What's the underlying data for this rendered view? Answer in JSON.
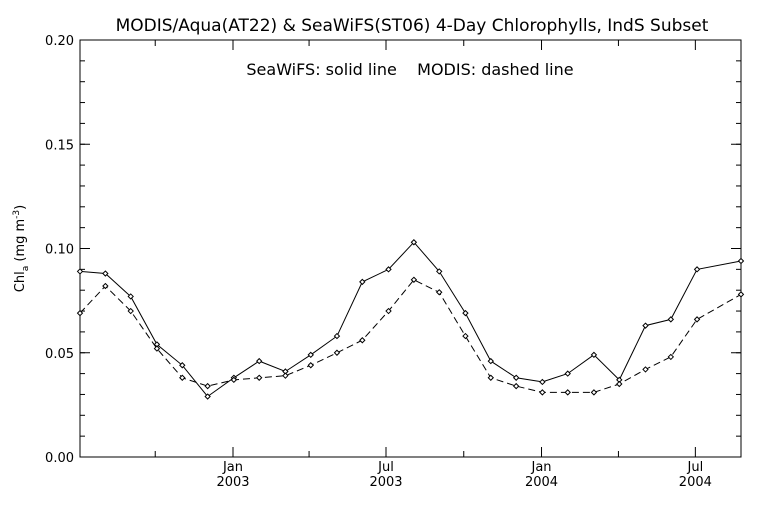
{
  "chart_data": {
    "type": "line",
    "title": "MODIS/Aqua(AT22) & SeaWiFS(ST06) 4-Day Chlorophylls, IndS Subset",
    "legend_note": "SeaWiFS: solid line    MODIS: dashed line",
    "ylabel": {
      "base": "Chl",
      "sub": "a",
      "units_pre": "(mg m",
      "units_sup": "-3",
      "units_post": ")"
    },
    "ylim": [
      0.0,
      0.2
    ],
    "yticks": [
      {
        "value": 0.0,
        "label": "0.00"
      },
      {
        "value": 0.05,
        "label": "0.05"
      },
      {
        "value": 0.1,
        "label": "0.10"
      },
      {
        "value": 0.15,
        "label": "0.15"
      },
      {
        "value": 0.2,
        "label": "0.20"
      }
    ],
    "xlim": [
      "2002-07-04",
      "2004-08-24"
    ],
    "xticks": [
      {
        "date": "2003-01-01",
        "label1": "Jan",
        "label2": "2003"
      },
      {
        "date": "2003-07-01",
        "label1": "Jul",
        "label2": "2003"
      },
      {
        "date": "2004-01-01",
        "label1": "Jan",
        "label2": "2004"
      },
      {
        "date": "2004-07-01",
        "label1": "Jul",
        "label2": "2004"
      }
    ],
    "xminor_ticks": [
      "2002-10-01",
      "2003-04-01",
      "2003-10-01",
      "2004-04-01"
    ],
    "grid": false,
    "series": [
      {
        "name": "SeaWiFS",
        "style": "solid",
        "color": "#000000",
        "points": [
          [
            "2002-07-04",
            0.089
          ],
          [
            "2002-08-03",
            0.088
          ],
          [
            "2002-09-02",
            0.077
          ],
          [
            "2002-10-03",
            0.054
          ],
          [
            "2002-11-02",
            0.044
          ],
          [
            "2002-12-02",
            0.029
          ],
          [
            "2003-01-02",
            0.038
          ],
          [
            "2003-02-01",
            0.046
          ],
          [
            "2003-03-04",
            0.041
          ],
          [
            "2003-04-03",
            0.049
          ],
          [
            "2003-05-04",
            0.058
          ],
          [
            "2003-06-03",
            0.084
          ],
          [
            "2003-07-04",
            0.09
          ],
          [
            "2003-08-03",
            0.103
          ],
          [
            "2003-09-02",
            0.089
          ],
          [
            "2003-10-03",
            0.069
          ],
          [
            "2003-11-02",
            0.046
          ],
          [
            "2003-12-02",
            0.038
          ],
          [
            "2004-01-02",
            0.036
          ],
          [
            "2004-02-01",
            0.04
          ],
          [
            "2004-03-03",
            0.049
          ],
          [
            "2004-04-02",
            0.037
          ],
          [
            "2004-05-03",
            0.063
          ],
          [
            "2004-06-02",
            0.066
          ],
          [
            "2004-07-03",
            0.09
          ],
          [
            "2004-08-24",
            0.094
          ]
        ]
      },
      {
        "name": "MODIS",
        "style": "dashed",
        "color": "#000000",
        "points": [
          [
            "2002-07-04",
            0.069
          ],
          [
            "2002-08-03",
            0.082
          ],
          [
            "2002-09-02",
            0.07
          ],
          [
            "2002-10-03",
            0.052
          ],
          [
            "2002-11-02",
            0.038
          ],
          [
            "2002-12-02",
            0.034
          ],
          [
            "2003-01-02",
            0.037
          ],
          [
            "2003-02-01",
            0.038
          ],
          [
            "2003-03-04",
            0.039
          ],
          [
            "2003-04-03",
            0.044
          ],
          [
            "2003-05-04",
            0.05
          ],
          [
            "2003-06-03",
            0.056
          ],
          [
            "2003-07-04",
            0.07
          ],
          [
            "2003-08-03",
            0.085
          ],
          [
            "2003-09-02",
            0.079
          ],
          [
            "2003-10-03",
            0.058
          ],
          [
            "2003-11-02",
            0.038
          ],
          [
            "2003-12-02",
            0.034
          ],
          [
            "2004-01-02",
            0.031
          ],
          [
            "2004-02-01",
            0.031
          ],
          [
            "2004-03-03",
            0.031
          ],
          [
            "2004-04-02",
            0.035
          ],
          [
            "2004-05-03",
            0.042
          ],
          [
            "2004-06-02",
            0.048
          ],
          [
            "2004-07-03",
            0.066
          ],
          [
            "2004-08-24",
            0.078
          ]
        ]
      }
    ]
  }
}
